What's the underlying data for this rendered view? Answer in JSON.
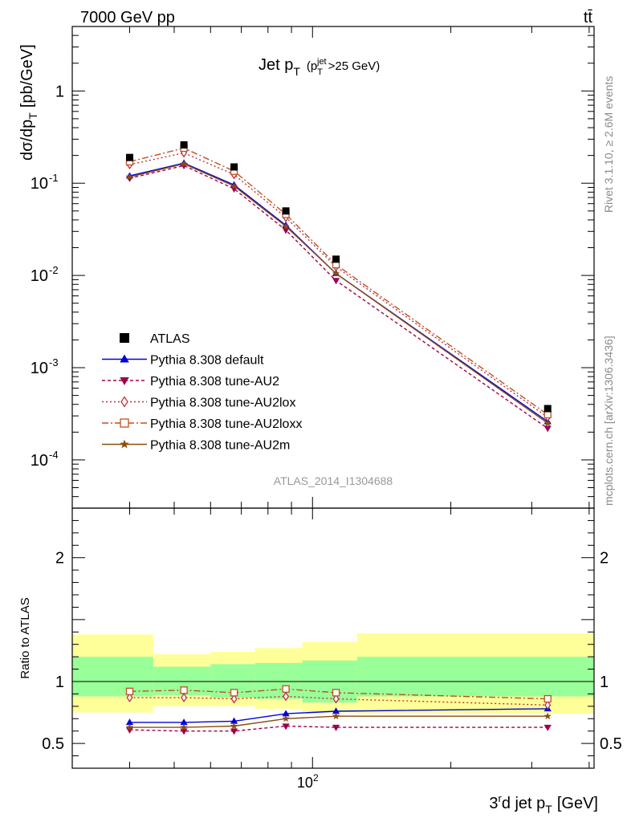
{
  "header": {
    "beam": "7000 GeV pp",
    "process": "tt̄"
  },
  "side": {
    "rivet": "Rivet 3.1.10, ≥ 2.6M events",
    "source": "mcplots.cern.ch [arXiv:1306.3436]"
  },
  "analysis_tag": "ATLAS_2014_I1304688",
  "chart_data": [
    {
      "type": "line",
      "panel": "main",
      "title": "Jet p_T (p_T^jet > 25 GeV)",
      "xlabel": "3rd jet p_T [GeV]",
      "ylabel": "dσ/dp_T [pb/GeV]",
      "xscale": "log",
      "yscale": "log",
      "xlim": [
        30,
        410
      ],
      "ylim": [
        3e-05,
        5
      ],
      "yticks": [
        {
          "value": 1,
          "label": "1"
        },
        {
          "value": 0.1,
          "label": "10^-1"
        },
        {
          "value": 0.01,
          "label": "10^-2"
        },
        {
          "value": 0.001,
          "label": "10^-3"
        },
        {
          "value": 0.0001,
          "label": "10^-4"
        }
      ],
      "legend_position": "left",
      "x": [
        40,
        52.5,
        67.5,
        87.5,
        112.5,
        325
      ],
      "series": [
        {
          "name": "ATLAS",
          "kind": "data",
          "color": "#000000",
          "marker": "square",
          "values": [
            0.19,
            0.26,
            0.15,
            0.05,
            0.015,
            0.00036
          ]
        },
        {
          "name": "Pythia 8.308 default",
          "kind": "mc",
          "color": "#0000dd",
          "marker": "triangle-up",
          "dash": "solid",
          "values": [
            0.12,
            0.165,
            0.096,
            0.035,
            0.0105,
            0.00026
          ]
        },
        {
          "name": "Pythia 8.308 tune-AU2",
          "kind": "mc",
          "color": "#a0004c",
          "marker": "triangle-down",
          "dash": "4,3",
          "values": [
            0.113,
            0.155,
            0.087,
            0.031,
            0.0088,
            0.00022
          ]
        },
        {
          "name": "Pythia 8.308 tune-AU2lox",
          "kind": "mc",
          "color": "#b8323e",
          "marker": "diamond-open",
          "dash": "2,3",
          "values": [
            0.159,
            0.213,
            0.124,
            0.0425,
            0.0124,
            0.00029
          ]
        },
        {
          "name": "Pythia 8.308 tune-AU2loxx",
          "kind": "mc",
          "color": "#c05020",
          "marker": "square-open",
          "dash": "8,3,2,3",
          "values": [
            0.171,
            0.24,
            0.135,
            0.046,
            0.0131,
            0.00031
          ]
        },
        {
          "name": "Pythia 8.308 tune-AU2m",
          "kind": "mc",
          "color": "#8a4e10",
          "marker": "star",
          "dash": "solid",
          "values": [
            0.117,
            0.162,
            0.093,
            0.034,
            0.0105,
            0.00025
          ]
        }
      ]
    },
    {
      "type": "line",
      "panel": "ratio",
      "ylabel": "Ratio to ATLAS",
      "xlabel": "3rd jet p_T [GeV]",
      "xscale": "log",
      "xlim": [
        30,
        410
      ],
      "ylim": [
        0.3,
        2.4
      ],
      "yticks": [
        {
          "value": 0.5,
          "label": "0.5"
        },
        {
          "value": 1,
          "label": "1"
        },
        {
          "value": 2,
          "label": "2"
        }
      ],
      "xticks": [
        {
          "value": 100,
          "label": "10^2"
        }
      ],
      "x": [
        40,
        52.5,
        67.5,
        87.5,
        112.5,
        325
      ],
      "bin_edges": [
        30,
        45,
        60,
        75,
        95,
        125,
        410
      ],
      "bands": {
        "outer": {
          "color": "#ffff99",
          "low": [
            0.75,
            0.8,
            0.8,
            0.78,
            0.75,
            0.74
          ],
          "high": [
            1.38,
            1.22,
            1.24,
            1.27,
            1.32,
            1.39
          ]
        },
        "inner": {
          "color": "#99ff99",
          "low": [
            0.88,
            0.89,
            0.87,
            0.86,
            0.83,
            0.88
          ],
          "high": [
            1.2,
            1.12,
            1.14,
            1.15,
            1.17,
            1.2
          ]
        }
      },
      "series": [
        {
          "name": "Pythia 8.308 default",
          "color": "#0000dd",
          "marker": "triangle-up",
          "dash": "solid",
          "values": [
            0.67,
            0.67,
            0.68,
            0.74,
            0.76,
            0.78
          ]
        },
        {
          "name": "Pythia 8.308 tune-AU2",
          "color": "#a0004c",
          "marker": "triangle-down",
          "dash": "4,3",
          "values": [
            0.61,
            0.6,
            0.6,
            0.64,
            0.63,
            0.63
          ]
        },
        {
          "name": "Pythia 8.308 tune-AU2lox",
          "color": "#b8323e",
          "marker": "diamond-open",
          "dash": "2,3",
          "values": [
            0.87,
            0.87,
            0.86,
            0.88,
            0.86,
            0.81
          ]
        },
        {
          "name": "Pythia 8.308 tune-AU2loxx",
          "color": "#c05020",
          "marker": "square-open",
          "dash": "8,3,2,3",
          "values": [
            0.92,
            0.93,
            0.91,
            0.94,
            0.91,
            0.86
          ]
        },
        {
          "name": "Pythia 8.308 tune-AU2m",
          "color": "#8a4e10",
          "marker": "star",
          "dash": "solid",
          "values": [
            0.63,
            0.63,
            0.64,
            0.7,
            0.72,
            0.72
          ]
        }
      ]
    }
  ]
}
